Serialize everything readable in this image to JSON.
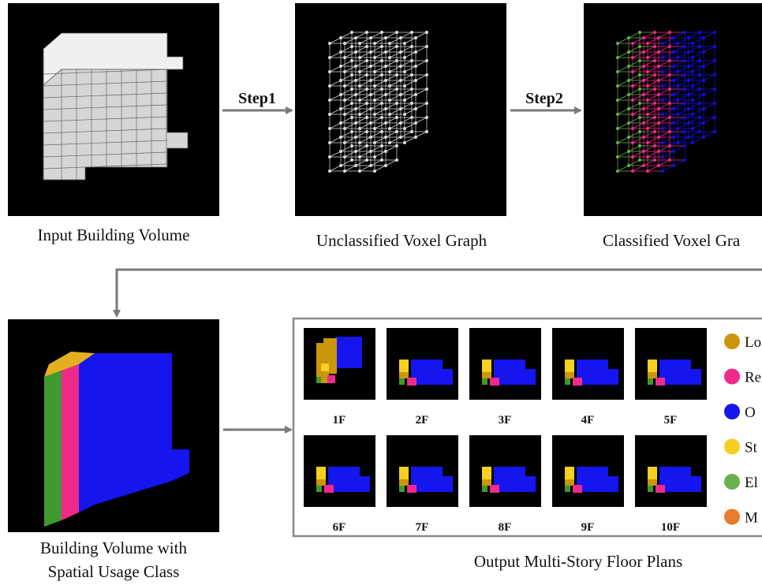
{
  "top_row": {
    "captions": [
      "Input Building Volume",
      "Unclassified Voxel Graph",
      "Classified Voxel Gra"
    ]
  },
  "steps": [
    "Step1",
    "Step2"
  ],
  "bottom_left": {
    "caption_lines": [
      "Building Volume with",
      "Spatial Usage Class"
    ]
  },
  "floor_plans": {
    "labels": [
      "1F",
      "2F",
      "3F",
      "4F",
      "5F",
      "6F",
      "7F",
      "8F",
      "9F",
      "10F"
    ],
    "caption": "Output Multi-Story Floor Plans"
  },
  "legend": [
    "Lo",
    "Re",
    "O",
    "St",
    "El",
    "M"
  ]
}
